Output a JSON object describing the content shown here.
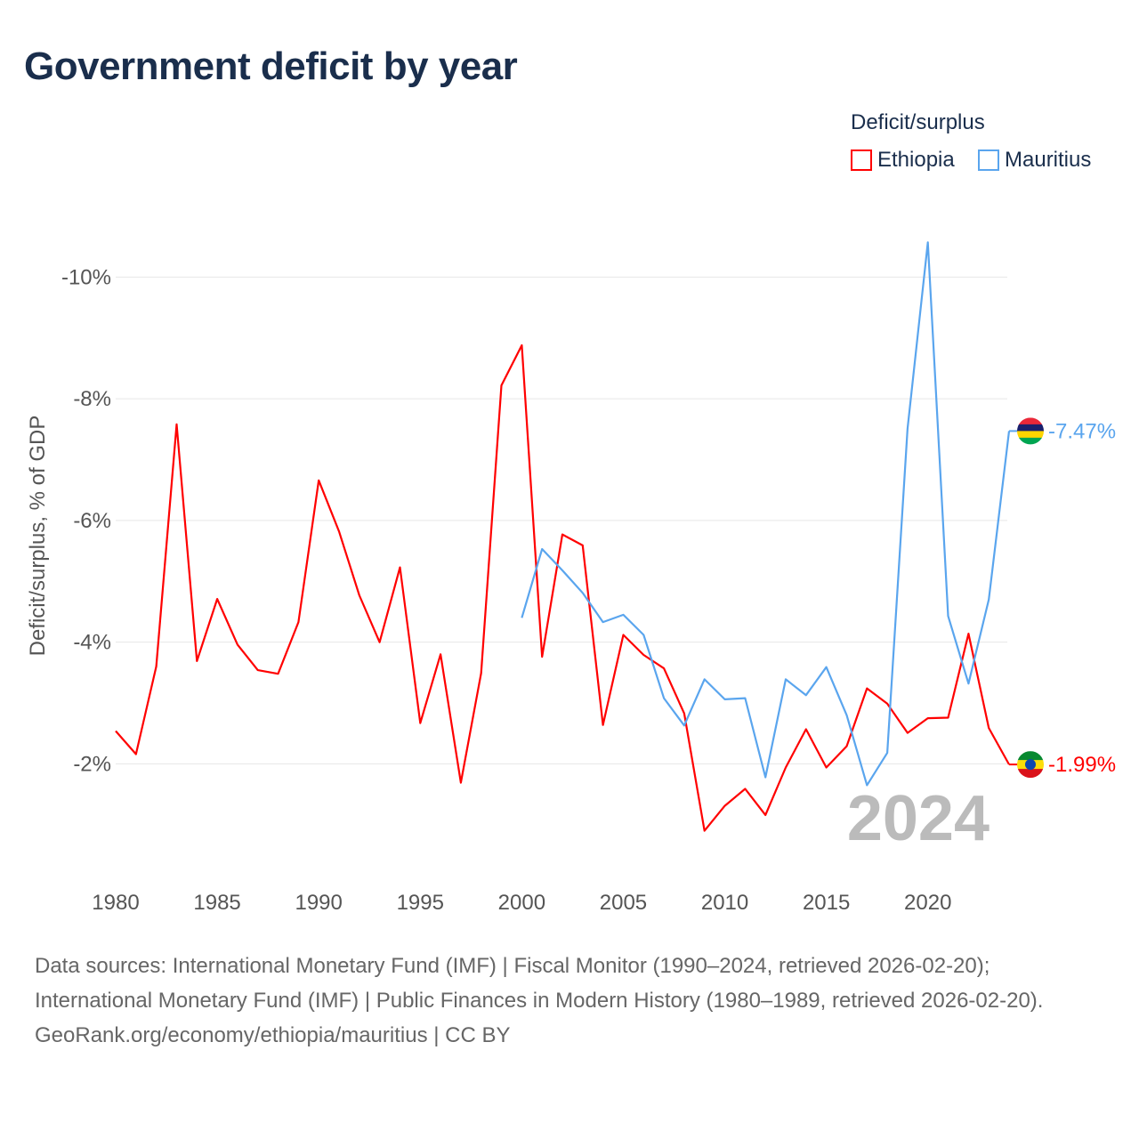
{
  "title": "Government deficit by year",
  "legend": {
    "title": "Deficit/surplus",
    "items": [
      "Ethiopia",
      "Mauritius"
    ]
  },
  "year_label": "2024",
  "footer": {
    "sources": "Data sources: International Monetary Fund (IMF) | Fiscal Monitor (1990–2024, retrieved 2026-02-20); International Monetary Fund (IMF) | Public Finances in Modern History (1980–1989, retrieved 2026-02-20).",
    "credit": "GeoRank.org/economy/ethiopia/mauritius | CC BY"
  },
  "chart_data": {
    "type": "line",
    "title": "Government deficit by year",
    "xlabel": "",
    "ylabel": "Deficit/surplus, % of GDP",
    "xlim": [
      1980,
      2024
    ],
    "ylim": [
      -11,
      -0.5
    ],
    "xticks": [
      1980,
      1985,
      1990,
      1995,
      2000,
      2005,
      2010,
      2015,
      2020
    ],
    "yticks": [
      -2,
      -4,
      -6,
      -8,
      -10
    ],
    "ytick_labels": [
      "-2%",
      "-4%",
      "-6%",
      "-8%",
      "-10%"
    ],
    "grid": true,
    "legend_position": "top-right",
    "series": [
      {
        "name": "Ethiopia",
        "color": "#ff0000",
        "start": 1980,
        "end_label": "-1.99%",
        "values": [
          -2.54,
          -2.16,
          -3.6,
          -7.58,
          -3.69,
          -4.71,
          -3.96,
          -3.54,
          -3.48,
          -4.33,
          -6.66,
          -5.82,
          -4.77,
          -4.0,
          -5.23,
          -2.67,
          -3.8,
          -1.69,
          -3.49,
          -8.22,
          -8.88,
          -3.76,
          -5.77,
          -5.59,
          -2.64,
          -4.12,
          -3.79,
          -3.57,
          -2.83,
          -0.9,
          -1.31,
          -1.59,
          -1.16,
          -1.94,
          -2.57,
          -1.94,
          -2.29,
          -3.24,
          -2.99,
          -2.51,
          -2.75,
          -2.76,
          -4.14,
          -2.59,
          -1.99
        ]
      },
      {
        "name": "Mauritius",
        "color": "#5aa5ee",
        "start": 2000,
        "end_label": "-7.47%",
        "values": [
          -4.4,
          -5.53,
          -5.18,
          -4.81,
          -4.33,
          -4.45,
          -4.12,
          -3.08,
          -2.63,
          -3.39,
          -3.06,
          -3.08,
          -1.78,
          -3.39,
          -3.13,
          -3.59,
          -2.8,
          -1.65,
          -2.18,
          -7.51,
          -10.57,
          -4.43,
          -3.32,
          -4.7,
          -7.47
        ]
      }
    ]
  }
}
